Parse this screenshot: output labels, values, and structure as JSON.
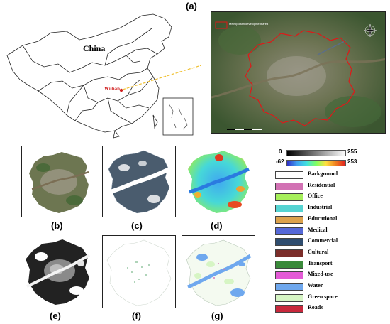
{
  "panels": {
    "a": "(a)",
    "b": "(b)",
    "c": "(c)",
    "d": "(d)",
    "e": "(e)",
    "f": "(f)",
    "g": "(g)"
  },
  "map": {
    "country_label": "China",
    "city_label": "Wuhan",
    "inset_legend": "Metropolitan development area"
  },
  "colorbars": {
    "gray_min": "0",
    "gray_max": "255",
    "color_min": "-62",
    "color_max": "253"
  },
  "legend": [
    {
      "label": "Background",
      "color": "#ffffff"
    },
    {
      "label": "Residential",
      "color": "#d272b4"
    },
    {
      "label": "Office",
      "color": "#a6f05a"
    },
    {
      "label": "Industrial",
      "color": "#55d4d2"
    },
    {
      "label": "Educational",
      "color": "#dca24c"
    },
    {
      "label": "Medical",
      "color": "#5568d8"
    },
    {
      "label": "Commercial",
      "color": "#2f4d6f"
    },
    {
      "label": "Cultural",
      "color": "#7c2e2a"
    },
    {
      "label": "Transport",
      "color": "#3a8a3a"
    },
    {
      "label": "Mixed-use",
      "color": "#e45ad6"
    },
    {
      "label": "Water",
      "color": "#6fa8ee"
    },
    {
      "label": "Green space",
      "color": "#d6f5c4"
    },
    {
      "label": "Roads",
      "color": "#c8283c"
    }
  ]
}
